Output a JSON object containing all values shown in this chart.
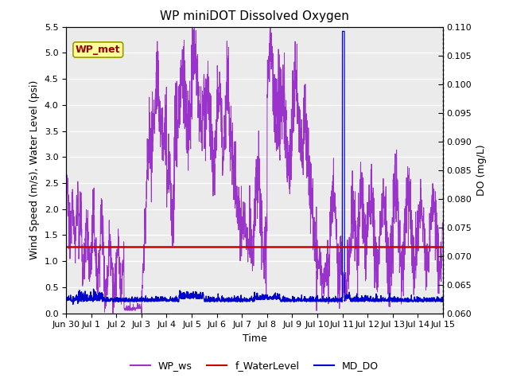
{
  "title": "WP miniDOT Dissolved Oxygen",
  "xlabel": "Time",
  "ylabel_left": "Wind Speed (m/s), Water Level (psi)",
  "ylabel_right": "DO (mg/L)",
  "ylim_left": [
    0.0,
    5.5
  ],
  "ylim_right": [
    0.06,
    0.11
  ],
  "yticks_left": [
    0.0,
    0.5,
    1.0,
    1.5,
    2.0,
    2.5,
    3.0,
    3.5,
    4.0,
    4.5,
    5.0,
    5.5
  ],
  "yticks_right": [
    0.06,
    0.065,
    0.07,
    0.075,
    0.08,
    0.085,
    0.09,
    0.095,
    0.1,
    0.105,
    0.11
  ],
  "xtick_labels": [
    "Jun 30",
    "Jul 1",
    "Jul 2",
    "Jul 3",
    "Jul 4",
    "Jul 5",
    "Jul 6",
    "Jul 7",
    "Jul 8",
    "Jul 9",
    "Jul 10",
    "Jul 11",
    "Jul 12",
    "Jul 13",
    "Jul 14",
    "Jul 15"
  ],
  "wp_ws_color": "#9933CC",
  "f_waterlevel_color": "#CC0000",
  "md_do_color": "#0000CC",
  "f_waterlevel_value": 1.27,
  "background_color": "#EBEBEB",
  "grid_color": "#FFFFFF",
  "annotation_text": "WP_met",
  "annotation_facecolor": "#FFFF99",
  "annotation_edgecolor": "#999900",
  "annotation_textcolor": "#990000"
}
